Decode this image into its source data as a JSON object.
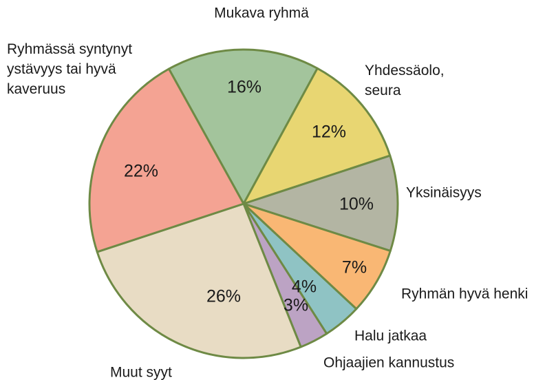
{
  "chart_data": {
    "type": "pie",
    "categories": [
      "Mukava ryhmä",
      "Yhdessäolo,\nseura",
      "Yksinäisyys",
      "Ryhmän hyvä henki",
      "Halu jatkaa",
      "Ohjaajien kannustus",
      "Muut syyt",
      "Ryhmässä syntynyt\nystävyys tai hyvä\nkaveruus"
    ],
    "values": [
      16,
      12,
      10,
      7,
      4,
      3,
      26,
      22
    ],
    "value_labels": [
      "16%",
      "12%",
      "10%",
      "7%",
      "4%",
      "3%",
      "26%",
      "22%"
    ],
    "colors": [
      "#a3c49c",
      "#e8d672",
      "#b3b5a3",
      "#f9b774",
      "#8fc3c4",
      "#bca3c4",
      "#e8dcc4",
      "#f4a393"
    ],
    "edge_color": "#6e8a45"
  }
}
